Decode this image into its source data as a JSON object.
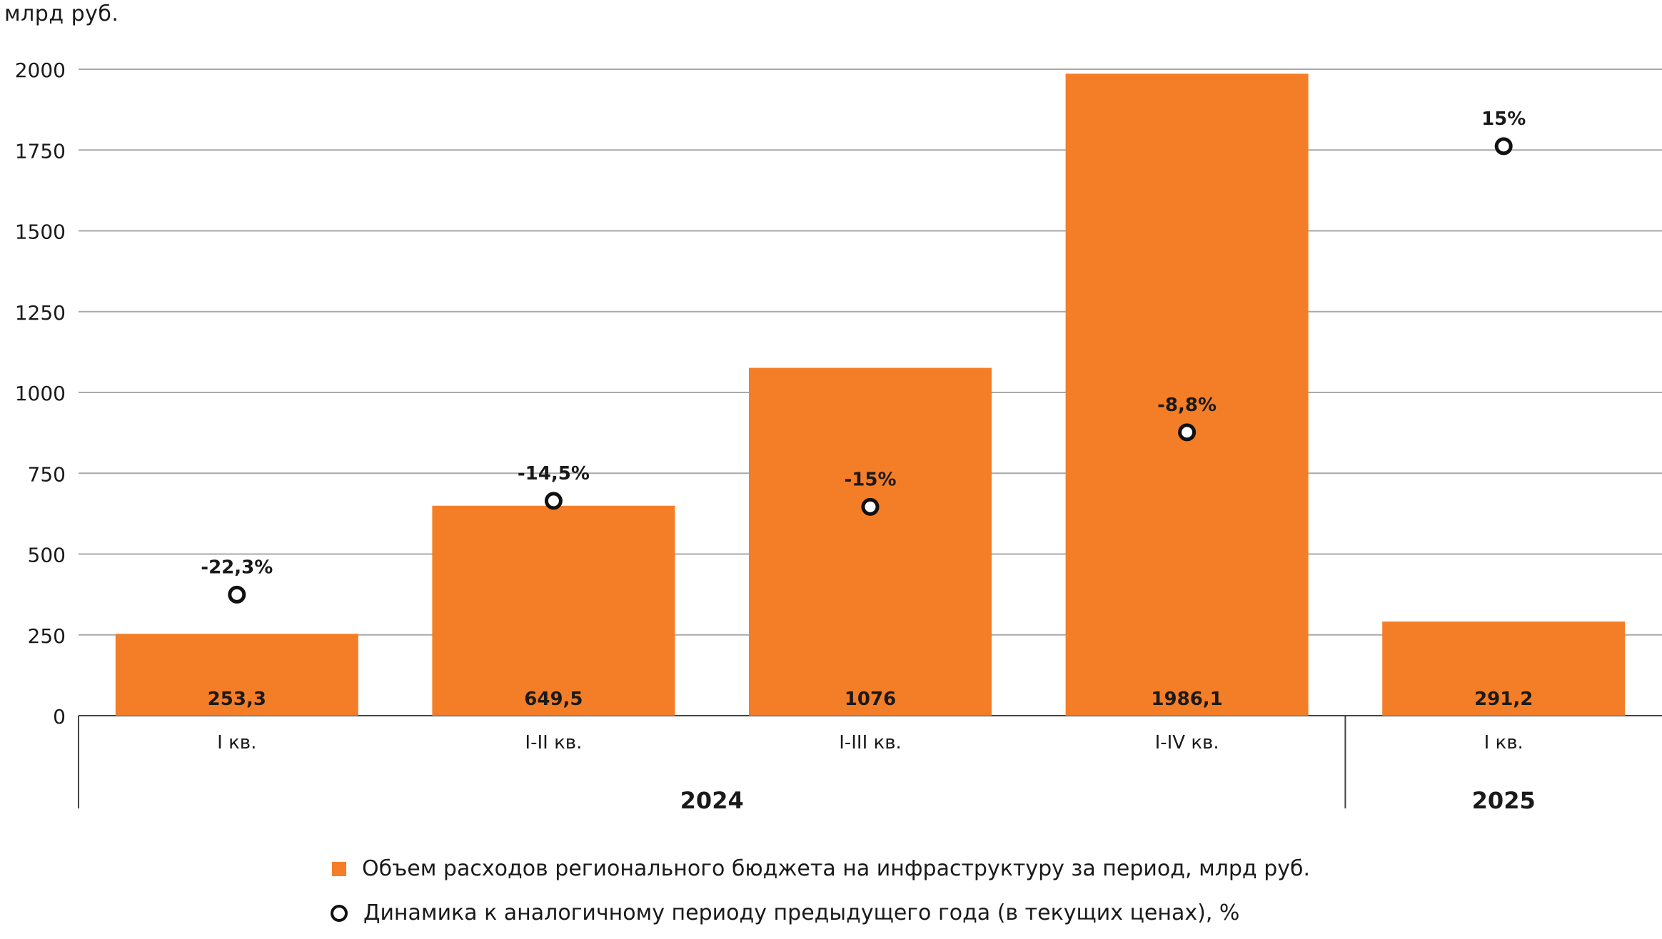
{
  "chart_data": {
    "type": "bar",
    "unit_label": "млрд руб.",
    "ylim": [
      0,
      2000
    ],
    "yticks": [
      "0",
      "250",
      "500",
      "750",
      "1000",
      "1250",
      "1500",
      "1750",
      "2000"
    ],
    "grid": true,
    "categories": [
      "I кв.",
      "I-II кв.",
      "I-III кв.",
      "I-IV кв.",
      "I кв."
    ],
    "groups": [
      {
        "label": "2024",
        "count": 4
      },
      {
        "label": "2025",
        "count": 1
      }
    ],
    "series": [
      {
        "name": "Объем расходов регионального бюджета на инфраструктуру за период, млрд руб.",
        "kind": "bar",
        "color": "#F47E27",
        "values": [
          253.3,
          649.5,
          1076,
          1986.1,
          291.2
        ],
        "value_labels": [
          "253,3",
          "649,5",
          "1076",
          "1986,1",
          "291,2"
        ]
      },
      {
        "name": "Динамика к аналогичному периоду предыдущего года (в текущих ценах), %",
        "kind": "marker",
        "color": "#111111",
        "values": [
          -22.3,
          -14.5,
          -15,
          -8.8,
          15
        ],
        "value_labels": [
          "-22,3%",
          "-14,5%",
          "-15%",
          "-8,8%",
          "15%"
        ]
      }
    ],
    "legend_position": "bottom"
  }
}
